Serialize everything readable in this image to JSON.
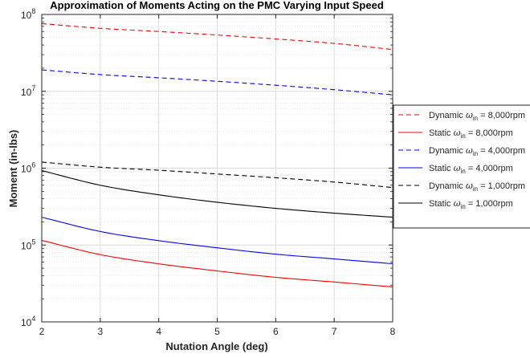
{
  "chart_data": {
    "type": "line",
    "title": "Approximation of Moments Acting on the PMC Varying Input Speed",
    "xlabel": "Nutation Angle (deg)",
    "ylabel": "Moment (in-lbs)",
    "xlim": [
      2,
      8
    ],
    "ylim": [
      10000,
      100000000
    ],
    "yscale": "log",
    "grid": true,
    "minor_grid": true,
    "legend_position": "right, outside plot",
    "x_ticks": [
      "2",
      "3",
      "4",
      "5",
      "6",
      "7",
      "8"
    ],
    "y_ticks": [
      {
        "base": "10",
        "exp": "4"
      },
      {
        "base": "10",
        "exp": "5"
      },
      {
        "base": "10",
        "exp": "6"
      },
      {
        "base": "10",
        "exp": "7"
      },
      {
        "base": "10",
        "exp": "8"
      }
    ],
    "x": [
      2,
      3,
      4,
      5,
      6,
      7,
      8
    ],
    "series": [
      {
        "name_prefix": "Dynamic ",
        "symbol": "ω",
        "subscript": "in",
        "name_suffix": " = 8,000rpm",
        "color": "#ff0000",
        "dash": "dashed",
        "values": [
          76000000,
          66000000,
          60000000,
          54000000,
          48000000,
          42000000,
          35000000
        ]
      },
      {
        "name_prefix": "Static ",
        "symbol": "ω",
        "subscript": "in",
        "name_suffix": " = 8,000rpm",
        "color": "#ff0000",
        "dash": "solid",
        "values": [
          115000,
          75000,
          57000,
          46000,
          38000,
          33000,
          28500
        ]
      },
      {
        "name_prefix": "Dynamic ",
        "symbol": "ω",
        "subscript": "in",
        "name_suffix": " = 4,000rpm",
        "color": "#0000ff",
        "dash": "dashed",
        "values": [
          19000000,
          16500000,
          15000000,
          13500000,
          12000000,
          10500000,
          9000000
        ]
      },
      {
        "name_prefix": "Static ",
        "symbol": "ω",
        "subscript": "in",
        "name_suffix": " = 4,000rpm",
        "color": "#0000ff",
        "dash": "solid",
        "values": [
          230000,
          150000,
          114000,
          92000,
          76000,
          66000,
          57000
        ]
      },
      {
        "name_prefix": "Dynamic ",
        "symbol": "ω",
        "subscript": "in",
        "name_suffix": " = 1,000rpm",
        "color": "#000000",
        "dash": "dashed",
        "values": [
          1200000,
          1030000,
          940000,
          840000,
          750000,
          660000,
          560000
        ]
      },
      {
        "name_prefix": "Static ",
        "symbol": "ω",
        "subscript": "in",
        "name_suffix": " = 1,000rpm",
        "color": "#000000",
        "dash": "solid",
        "values": [
          930000,
          600000,
          450000,
          360000,
          300000,
          260000,
          230000
        ]
      }
    ]
  }
}
